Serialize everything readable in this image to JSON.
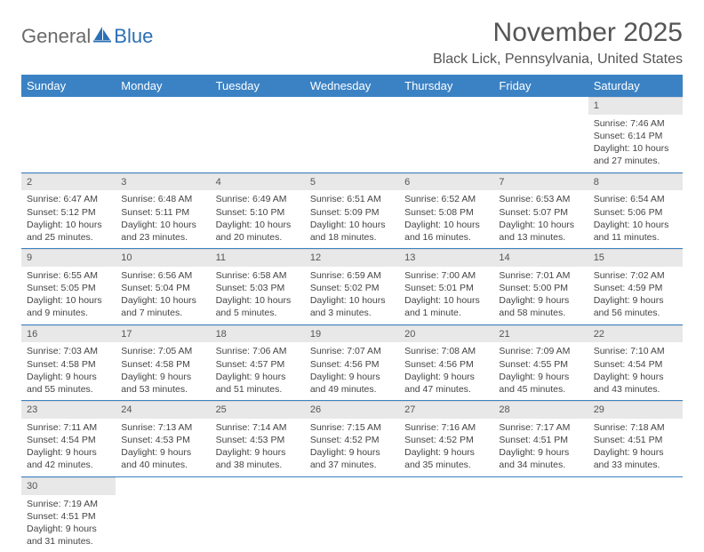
{
  "logo": {
    "part1": "General",
    "part2": "Blue"
  },
  "title": "November 2025",
  "location": "Black Lick, Pennsylvania, United States",
  "colors": {
    "header_bg": "#3b82c4",
    "header_text": "#ffffff",
    "daynum_bg": "#e8e8e8",
    "border": "#3b82c4",
    "logo_blue": "#2c6fb5",
    "text": "#444444"
  },
  "dayHeaders": [
    "Sunday",
    "Monday",
    "Tuesday",
    "Wednesday",
    "Thursday",
    "Friday",
    "Saturday"
  ],
  "weeks": [
    [
      null,
      null,
      null,
      null,
      null,
      null,
      {
        "n": "1",
        "sunrise": "Sunrise: 7:46 AM",
        "sunset": "Sunset: 6:14 PM",
        "daylight": "Daylight: 10 hours and 27 minutes."
      }
    ],
    [
      {
        "n": "2",
        "sunrise": "Sunrise: 6:47 AM",
        "sunset": "Sunset: 5:12 PM",
        "daylight": "Daylight: 10 hours and 25 minutes."
      },
      {
        "n": "3",
        "sunrise": "Sunrise: 6:48 AM",
        "sunset": "Sunset: 5:11 PM",
        "daylight": "Daylight: 10 hours and 23 minutes."
      },
      {
        "n": "4",
        "sunrise": "Sunrise: 6:49 AM",
        "sunset": "Sunset: 5:10 PM",
        "daylight": "Daylight: 10 hours and 20 minutes."
      },
      {
        "n": "5",
        "sunrise": "Sunrise: 6:51 AM",
        "sunset": "Sunset: 5:09 PM",
        "daylight": "Daylight: 10 hours and 18 minutes."
      },
      {
        "n": "6",
        "sunrise": "Sunrise: 6:52 AM",
        "sunset": "Sunset: 5:08 PM",
        "daylight": "Daylight: 10 hours and 16 minutes."
      },
      {
        "n": "7",
        "sunrise": "Sunrise: 6:53 AM",
        "sunset": "Sunset: 5:07 PM",
        "daylight": "Daylight: 10 hours and 13 minutes."
      },
      {
        "n": "8",
        "sunrise": "Sunrise: 6:54 AM",
        "sunset": "Sunset: 5:06 PM",
        "daylight": "Daylight: 10 hours and 11 minutes."
      }
    ],
    [
      {
        "n": "9",
        "sunrise": "Sunrise: 6:55 AM",
        "sunset": "Sunset: 5:05 PM",
        "daylight": "Daylight: 10 hours and 9 minutes."
      },
      {
        "n": "10",
        "sunrise": "Sunrise: 6:56 AM",
        "sunset": "Sunset: 5:04 PM",
        "daylight": "Daylight: 10 hours and 7 minutes."
      },
      {
        "n": "11",
        "sunrise": "Sunrise: 6:58 AM",
        "sunset": "Sunset: 5:03 PM",
        "daylight": "Daylight: 10 hours and 5 minutes."
      },
      {
        "n": "12",
        "sunrise": "Sunrise: 6:59 AM",
        "sunset": "Sunset: 5:02 PM",
        "daylight": "Daylight: 10 hours and 3 minutes."
      },
      {
        "n": "13",
        "sunrise": "Sunrise: 7:00 AM",
        "sunset": "Sunset: 5:01 PM",
        "daylight": "Daylight: 10 hours and 1 minute."
      },
      {
        "n": "14",
        "sunrise": "Sunrise: 7:01 AM",
        "sunset": "Sunset: 5:00 PM",
        "daylight": "Daylight: 9 hours and 58 minutes."
      },
      {
        "n": "15",
        "sunrise": "Sunrise: 7:02 AM",
        "sunset": "Sunset: 4:59 PM",
        "daylight": "Daylight: 9 hours and 56 minutes."
      }
    ],
    [
      {
        "n": "16",
        "sunrise": "Sunrise: 7:03 AM",
        "sunset": "Sunset: 4:58 PM",
        "daylight": "Daylight: 9 hours and 55 minutes."
      },
      {
        "n": "17",
        "sunrise": "Sunrise: 7:05 AM",
        "sunset": "Sunset: 4:58 PM",
        "daylight": "Daylight: 9 hours and 53 minutes."
      },
      {
        "n": "18",
        "sunrise": "Sunrise: 7:06 AM",
        "sunset": "Sunset: 4:57 PM",
        "daylight": "Daylight: 9 hours and 51 minutes."
      },
      {
        "n": "19",
        "sunrise": "Sunrise: 7:07 AM",
        "sunset": "Sunset: 4:56 PM",
        "daylight": "Daylight: 9 hours and 49 minutes."
      },
      {
        "n": "20",
        "sunrise": "Sunrise: 7:08 AM",
        "sunset": "Sunset: 4:56 PM",
        "daylight": "Daylight: 9 hours and 47 minutes."
      },
      {
        "n": "21",
        "sunrise": "Sunrise: 7:09 AM",
        "sunset": "Sunset: 4:55 PM",
        "daylight": "Daylight: 9 hours and 45 minutes."
      },
      {
        "n": "22",
        "sunrise": "Sunrise: 7:10 AM",
        "sunset": "Sunset: 4:54 PM",
        "daylight": "Daylight: 9 hours and 43 minutes."
      }
    ],
    [
      {
        "n": "23",
        "sunrise": "Sunrise: 7:11 AM",
        "sunset": "Sunset: 4:54 PM",
        "daylight": "Daylight: 9 hours and 42 minutes."
      },
      {
        "n": "24",
        "sunrise": "Sunrise: 7:13 AM",
        "sunset": "Sunset: 4:53 PM",
        "daylight": "Daylight: 9 hours and 40 minutes."
      },
      {
        "n": "25",
        "sunrise": "Sunrise: 7:14 AM",
        "sunset": "Sunset: 4:53 PM",
        "daylight": "Daylight: 9 hours and 38 minutes."
      },
      {
        "n": "26",
        "sunrise": "Sunrise: 7:15 AM",
        "sunset": "Sunset: 4:52 PM",
        "daylight": "Daylight: 9 hours and 37 minutes."
      },
      {
        "n": "27",
        "sunrise": "Sunrise: 7:16 AM",
        "sunset": "Sunset: 4:52 PM",
        "daylight": "Daylight: 9 hours and 35 minutes."
      },
      {
        "n": "28",
        "sunrise": "Sunrise: 7:17 AM",
        "sunset": "Sunset: 4:51 PM",
        "daylight": "Daylight: 9 hours and 34 minutes."
      },
      {
        "n": "29",
        "sunrise": "Sunrise: 7:18 AM",
        "sunset": "Sunset: 4:51 PM",
        "daylight": "Daylight: 9 hours and 33 minutes."
      }
    ],
    [
      {
        "n": "30",
        "sunrise": "Sunrise: 7:19 AM",
        "sunset": "Sunset: 4:51 PM",
        "daylight": "Daylight: 9 hours and 31 minutes."
      },
      null,
      null,
      null,
      null,
      null,
      null
    ]
  ]
}
